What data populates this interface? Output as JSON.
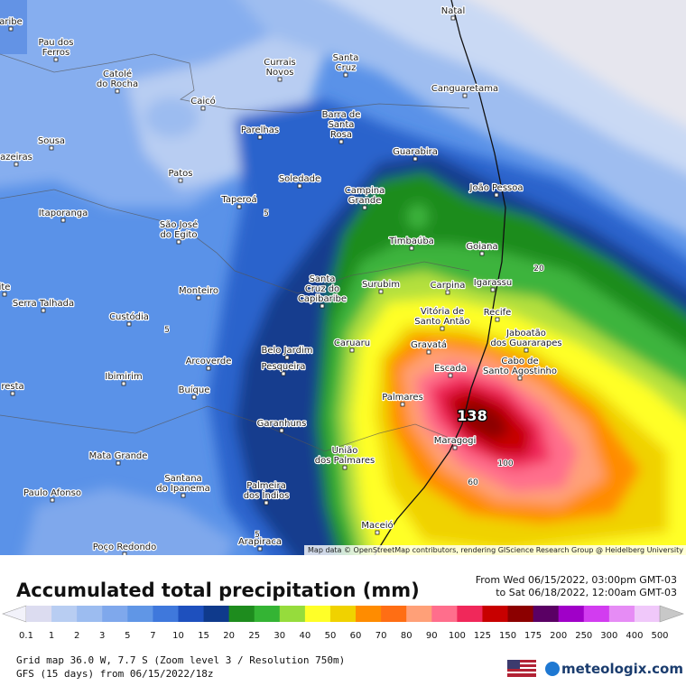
{
  "map": {
    "cities": [
      {
        "lines": [
          "Natal"
        ]
      },
      {
        "lines": [
          "aribe"
        ]
      },
      {
        "lines": [
          "Pau dos",
          "Ferros"
        ]
      },
      {
        "lines": [
          "Catolé",
          "do Rocha"
        ]
      },
      {
        "lines": [
          "Caicó"
        ]
      },
      {
        "lines": [
          "Currais",
          "Novos"
        ]
      },
      {
        "lines": [
          "Santa",
          "Cruz"
        ]
      },
      {
        "lines": [
          "Canguaretama"
        ]
      },
      {
        "lines": [
          "Barra de",
          "Santa",
          "Rosa"
        ]
      },
      {
        "lines": [
          "Parelhas"
        ]
      },
      {
        "lines": [
          "Sousa"
        ]
      },
      {
        "lines": [
          "azeiras"
        ]
      },
      {
        "lines": [
          "Guarabira"
        ]
      },
      {
        "lines": [
          "Patos"
        ]
      },
      {
        "lines": [
          "Soledade"
        ]
      },
      {
        "lines": [
          "João Pessoa"
        ]
      },
      {
        "lines": [
          "Campina",
          "Grande"
        ]
      },
      {
        "lines": [
          "Taperoá"
        ]
      },
      {
        "lines": [
          "Itaporanga"
        ]
      },
      {
        "lines": [
          "São José",
          "do Egito"
        ]
      },
      {
        "lines": [
          "Timbaúba"
        ]
      },
      {
        "lines": [
          "Goiana"
        ]
      },
      {
        "lines": [
          "ite"
        ]
      },
      {
        "lines": [
          "Serra Talhada"
        ]
      },
      {
        "lines": [
          "Monteiro"
        ]
      },
      {
        "lines": [
          "Santa",
          "Cruz do",
          "Capibaribe"
        ]
      },
      {
        "lines": [
          "Surubim"
        ]
      },
      {
        "lines": [
          "Carpina"
        ]
      },
      {
        "lines": [
          "Igarassu"
        ]
      },
      {
        "lines": [
          "Vitória de",
          "Santo Antão"
        ]
      },
      {
        "lines": [
          "Recife"
        ]
      },
      {
        "lines": [
          "Custódia"
        ]
      },
      {
        "lines": [
          "Jaboatão",
          "dos Guararapes"
        ]
      },
      {
        "lines": [
          "Caruaru"
        ]
      },
      {
        "lines": [
          "Gravatá"
        ]
      },
      {
        "lines": [
          "Belo Jardim"
        ]
      },
      {
        "lines": [
          "Cabo de",
          "Santo Agostinho"
        ]
      },
      {
        "lines": [
          "Arcoverde"
        ]
      },
      {
        "lines": [
          "Pesqueira"
        ]
      },
      {
        "lines": [
          "Escada"
        ]
      },
      {
        "lines": [
          "Ibimirim"
        ]
      },
      {
        "lines": [
          "resta"
        ]
      },
      {
        "lines": [
          "Buíque"
        ]
      },
      {
        "lines": [
          "Palmares"
        ]
      },
      {
        "lines": [
          "Garanhuns"
        ]
      },
      {
        "lines": [
          "Maragogi"
        ]
      },
      {
        "lines": [
          "União",
          "dos Palmares"
        ]
      },
      {
        "lines": [
          "Mata Grande"
        ]
      },
      {
        "lines": [
          "Santana",
          "do Ipanema"
        ]
      },
      {
        "lines": [
          "Palmeira",
          "dos Índios"
        ]
      },
      {
        "lines": [
          "Paulo Afonso"
        ]
      },
      {
        "lines": [
          "Maceió"
        ]
      },
      {
        "lines": [
          "Arapiraca"
        ]
      },
      {
        "lines": [
          "Poço Redondo"
        ]
      }
    ],
    "contour_labels": [
      "5",
      "5",
      "5",
      "20",
      "60",
      "100"
    ],
    "max_label": "138",
    "attribution": "Map data © OpenStreetMap contributors, rendering GIScience Research Group @ Heidelberg University"
  },
  "legend": {
    "title": "Accumulated total precipitation (mm)",
    "period_from": "From Wed 06/15/2022, 03:00pm GMT-03",
    "period_to": "to Sat 06/18/2022, 12:00am GMT-03",
    "scale_labels": [
      0.1,
      1,
      2,
      3,
      5,
      7,
      10,
      15,
      20,
      25,
      30,
      40,
      50,
      60,
      70,
      80,
      90,
      100,
      125,
      150,
      175,
      200,
      250,
      300,
      400,
      500
    ],
    "scale_colors": [
      "#f2f2fa",
      "#dcdcf0",
      "#b8cdf2",
      "#9cbcf0",
      "#7fa8ec",
      "#6096e6",
      "#3f78dc",
      "#1e50be",
      "#0f3a8c",
      "#1e8c1e",
      "#34b434",
      "#96dc3c",
      "#ffff28",
      "#f0d200",
      "#ff8c00",
      "#ff6e14",
      "#ffa078",
      "#ff6e8c",
      "#f0285a",
      "#c80000",
      "#8c0000",
      "#5a0064",
      "#a000c8",
      "#d23cf0",
      "#e68cf5",
      "#f0c8fa",
      "#c8c8c8"
    ],
    "grid_info": "Grid map 36.0 W, 7.7 S (Zoom level 3 / Resolution 750m)",
    "model_info": "GFS (15 days) from 06/15/2022/18z",
    "brand": "meteologix.com"
  }
}
